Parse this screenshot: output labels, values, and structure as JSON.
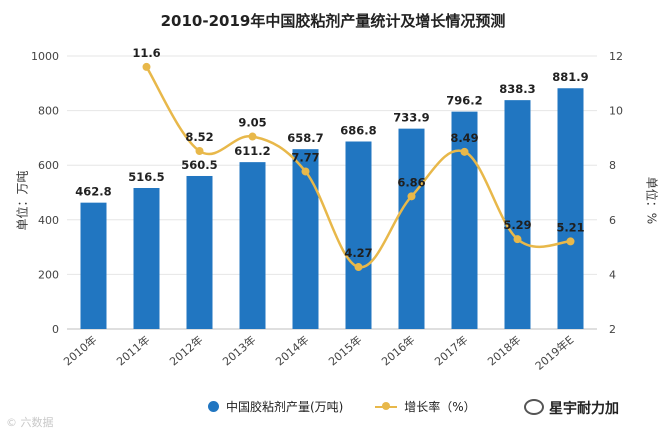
{
  "chart_data": {
    "type": "bar",
    "title": "2010-2019年中国胶粘剂产量统计及增长情况预测",
    "categories": [
      "2010年",
      "2011年",
      "2012年",
      "2013年",
      "2014年",
      "2015年",
      "2016年",
      "2017年",
      "2018年",
      "2019年E"
    ],
    "series": [
      {
        "name": "中国胶粘剂产量(万吨)",
        "type": "bar",
        "axis": "left",
        "color": "#2176c1",
        "values": [
          462.8,
          516.5,
          560.5,
          611.2,
          658.7,
          686.8,
          733.9,
          796.2,
          838.3,
          881.9
        ]
      },
      {
        "name": "增长率（%）",
        "type": "line",
        "axis": "right",
        "color": "#e8b84a",
        "values": [
          null,
          11.6,
          8.52,
          9.05,
          7.77,
          4.27,
          6.86,
          8.49,
          5.29,
          5.21
        ]
      }
    ],
    "bar_labels": [
      "462.8",
      "516.5",
      "560.5",
      "611.2",
      "658.7",
      "686.8",
      "733.9",
      "796.2",
      "838.3",
      "881.9"
    ],
    "line_labels": [
      "",
      "11.6",
      "8.52",
      "9.05",
      "7.77",
      "4.27",
      "6.86",
      "8.49",
      "5.29",
      "5.21"
    ],
    "ylabel_left": "单位：万吨",
    "ylabel_right": "单位：%",
    "yticks_left": [
      "0",
      "200",
      "400",
      "600",
      "800",
      "1000"
    ],
    "yticks_right": [
      "2",
      "4",
      "6",
      "8",
      "10",
      "12"
    ],
    "ylim_left": [
      0,
      1000
    ],
    "ylim_right": [
      2,
      12
    ],
    "legend_position": "bottom"
  },
  "legend": {
    "bar_label": "中国胶粘剂产量(万吨)",
    "line_label": "增长率（%）"
  },
  "brand": "星宇耐力加",
  "watermark": "© 六数据"
}
